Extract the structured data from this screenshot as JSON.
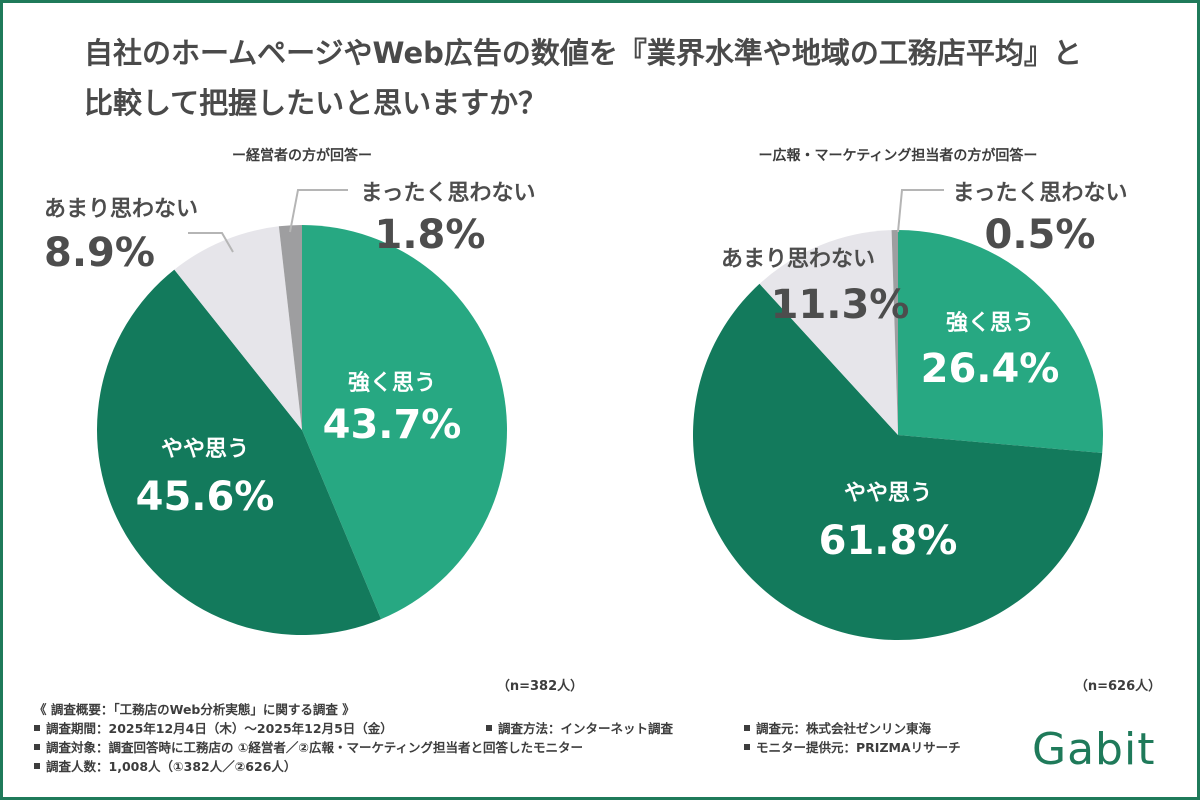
{
  "title_line1": "自社のホームページやWeb広告の数値を『業界水準や地域の工務店平均』と",
  "title_line2": "比較して把握したいと思いますか？",
  "colors": {
    "strong": "#27a882",
    "somewhat": "#137a5c",
    "not_much": "#e6e5ea",
    "not_at_all": "#9e9ea0",
    "brand": "#1f7a5a"
  },
  "chart_data": [
    {
      "type": "pie",
      "title": "ー経営者の方が回答ー",
      "n_label": "（n=382人）",
      "slices": [
        {
          "label": "強く思う",
          "value": 43.7,
          "value_label": "43.7%"
        },
        {
          "label": "やや思う",
          "value": 45.6,
          "value_label": "45.6%"
        },
        {
          "label": "あまり思わない",
          "value": 8.9,
          "value_label": "8.9%"
        },
        {
          "label": "まったく思わない",
          "value": 1.8,
          "value_label": "1.8%"
        }
      ]
    },
    {
      "type": "pie",
      "title": "ー広報・マーケティング担当者の方が回答ー",
      "n_label": "（n=626人）",
      "slices": [
        {
          "label": "強く思う",
          "value": 26.4,
          "value_label": "26.4%"
        },
        {
          "label": "やや思う",
          "value": 61.8,
          "value_label": "61.8%"
        },
        {
          "label": "あまり思わない",
          "value": 11.3,
          "value_label": "11.3%"
        },
        {
          "label": "まったく思わない",
          "value": 0.5,
          "value_label": "0.5%"
        }
      ]
    }
  ],
  "footer": {
    "heading": "《 調査概要：「工務店のWeb分析実態」に関する調査 》",
    "period": "調査期間：2025年12月4日（木）〜2025年12月5日（金）",
    "method": "調査方法：インターネット調査",
    "organizer": "調査元：株式会社ゼンリン東海",
    "target": "調査対象：調査回答時に工務店の ①経営者／②広報・マーケティング担当者と回答したモニター",
    "provider": "モニター提供元：PRIZMAリサーチ",
    "count": "調査人数：1,008人（①382人／②626人）"
  },
  "logo": "Gabit"
}
